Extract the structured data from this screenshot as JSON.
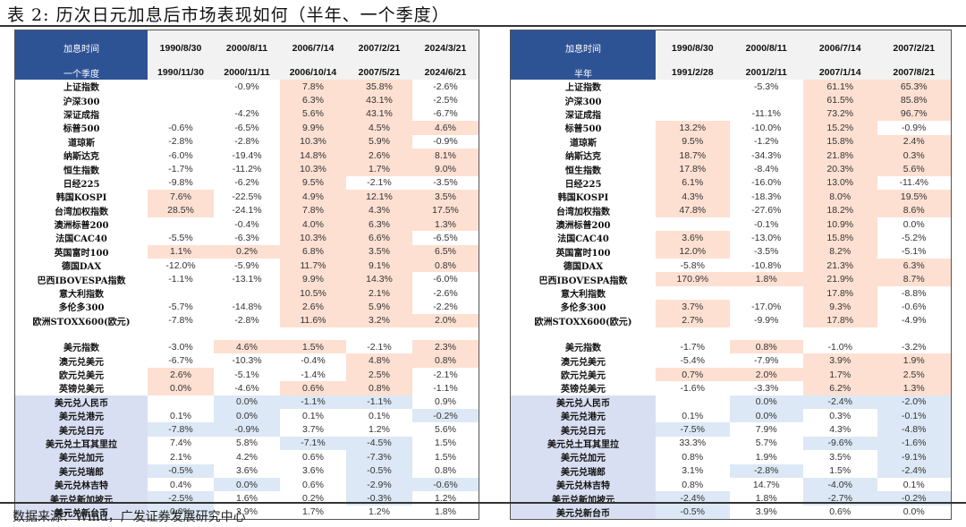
{
  "title": "表 2: 历次日元加息后市场表现如何（半年、一个季度）",
  "source": "数据来源：Wind，广发证券发展研究中心",
  "colors": {
    "header_blue": "#2e5395",
    "positive_shade": "#fde0d2",
    "negative_shade": "#dce8f5",
    "fx_label_shade": "#d9dff2"
  },
  "quarter_table": {
    "header_label_1": "加息时间",
    "header_label_2": "一个季度",
    "start_dates": [
      "1990/8/30",
      "2000/8/11",
      "2006/7/14",
      "2007/2/21",
      "2024/3/21"
    ],
    "end_dates": [
      "1990/11/30",
      "2000/11/11",
      "2006/10/14",
      "2007/5/21",
      "2024/6/21"
    ],
    "equity_rows": [
      {
        "label": "上证指数",
        "values": [
          "",
          "-0.9%",
          "7.8%",
          "35.8%",
          "-2.6%"
        ],
        "shade": [
          "",
          "",
          "o",
          "o",
          ""
        ]
      },
      {
        "label": "沪深300",
        "values": [
          "",
          "",
          "6.3%",
          "43.1%",
          "-2.5%"
        ],
        "shade": [
          "",
          "",
          "o",
          "o",
          ""
        ]
      },
      {
        "label": "深证成指",
        "values": [
          "",
          "-4.2%",
          "5.6%",
          "43.1%",
          "-6.7%"
        ],
        "shade": [
          "",
          "",
          "o",
          "o",
          ""
        ]
      },
      {
        "label": "标普500",
        "values": [
          "-0.6%",
          "-6.5%",
          "9.9%",
          "4.5%",
          "4.6%"
        ],
        "shade": [
          "",
          "",
          "o",
          "o",
          "o"
        ]
      },
      {
        "label": "道琼斯",
        "values": [
          "-2.8%",
          "-2.8%",
          "10.3%",
          "5.9%",
          "-0.9%"
        ],
        "shade": [
          "",
          "",
          "o",
          "o",
          ""
        ]
      },
      {
        "label": "纳斯达克",
        "values": [
          "-6.0%",
          "-19.4%",
          "14.8%",
          "2.6%",
          "8.1%"
        ],
        "shade": [
          "",
          "",
          "o",
          "o",
          "o"
        ]
      },
      {
        "label": "恒生指数",
        "values": [
          "-1.7%",
          "-11.2%",
          "10.3%",
          "1.7%",
          "9.0%"
        ],
        "shade": [
          "",
          "",
          "o",
          "o",
          "o"
        ]
      },
      {
        "label": "日经225",
        "values": [
          "-9.8%",
          "-6.2%",
          "9.5%",
          "-2.1%",
          "-3.5%"
        ],
        "shade": [
          "",
          "",
          "o",
          "",
          ""
        ]
      },
      {
        "label": "韩国KOSPI",
        "values": [
          "7.6%",
          "-22.5%",
          "4.9%",
          "12.1%",
          "3.5%"
        ],
        "shade": [
          "o",
          "",
          "o",
          "o",
          "o"
        ]
      },
      {
        "label": "台湾加权指数",
        "values": [
          "28.5%",
          "-24.1%",
          "7.8%",
          "4.3%",
          "17.5%"
        ],
        "shade": [
          "o",
          "",
          "o",
          "o",
          "o"
        ]
      },
      {
        "label": "澳洲标普200",
        "values": [
          "",
          "-0.4%",
          "4.0%",
          "6.3%",
          "1.3%"
        ],
        "shade": [
          "",
          "",
          "o",
          "o",
          "o"
        ]
      },
      {
        "label": "法国CAC40",
        "values": [
          "-5.5%",
          "-6.3%",
          "10.3%",
          "6.6%",
          "-6.5%"
        ],
        "shade": [
          "",
          "",
          "o",
          "o",
          ""
        ]
      },
      {
        "label": "英国富时100",
        "values": [
          "1.1%",
          "0.2%",
          "6.8%",
          "3.5%",
          "6.5%"
        ],
        "shade": [
          "o",
          "o",
          "o",
          "o",
          "o"
        ]
      },
      {
        "label": "德国DAX",
        "values": [
          "-12.0%",
          "-5.9%",
          "11.7%",
          "9.1%",
          "0.8%"
        ],
        "shade": [
          "",
          "",
          "o",
          "o",
          "o"
        ]
      },
      {
        "label": "巴西IBOVESPA指数",
        "values": [
          "-1.1%",
          "-13.1%",
          "9.9%",
          "14.3%",
          "-6.0%"
        ],
        "shade": [
          "",
          "",
          "o",
          "o",
          ""
        ]
      },
      {
        "label": "意大利指数",
        "values": [
          "",
          "",
          "10.5%",
          "2.1%",
          "-2.6%"
        ],
        "shade": [
          "",
          "",
          "o",
          "o",
          ""
        ]
      },
      {
        "label": "多伦多300",
        "values": [
          "-5.7%",
          "-14.8%",
          "2.6%",
          "5.9%",
          "-2.2%"
        ],
        "shade": [
          "",
          "",
          "o",
          "o",
          ""
        ]
      },
      {
        "label": "欧洲STOXX600(欧元)",
        "values": [
          "-7.8%",
          "-2.8%",
          "11.6%",
          "3.2%",
          "2.0%"
        ],
        "shade": [
          "",
          "",
          "o",
          "o",
          "o"
        ]
      }
    ],
    "dollar_rows": [
      {
        "label": "美元指数",
        "values": [
          "-3.0%",
          "4.6%",
          "1.5%",
          "-2.1%",
          "2.3%"
        ],
        "shade": [
          "",
          "o",
          "o",
          "",
          "o"
        ]
      },
      {
        "label": "澳元兑美元",
        "values": [
          "-6.7%",
          "-10.3%",
          "-0.4%",
          "4.8%",
          "0.8%"
        ],
        "shade": [
          "",
          "",
          "",
          "o",
          "o"
        ]
      },
      {
        "label": "欧元兑美元",
        "values": [
          "2.6%",
          "-5.1%",
          "-1.4%",
          "2.5%",
          "-2.1%"
        ],
        "shade": [
          "o",
          "",
          "",
          "o",
          ""
        ]
      },
      {
        "label": "英镑兑美元",
        "values": [
          "0.0%",
          "-4.6%",
          "0.6%",
          "0.8%",
          "-1.1%"
        ],
        "shade": [
          "o",
          "",
          "o",
          "o",
          ""
        ]
      }
    ],
    "fx_rows": [
      {
        "label": "美元兑人民币",
        "values": [
          "",
          "0.0%",
          "-1.1%",
          "-1.1%",
          "0.9%"
        ],
        "shade": [
          "",
          "b",
          "b",
          "b",
          ""
        ]
      },
      {
        "label": "美元兑港元",
        "values": [
          "0.1%",
          "0.0%",
          "0.1%",
          "0.1%",
          "-0.2%"
        ],
        "shade": [
          "",
          "b",
          "",
          "",
          "b"
        ]
      },
      {
        "label": "美元兑日元",
        "values": [
          "-7.8%",
          "-0.9%",
          "3.7%",
          "1.2%",
          "5.6%"
        ],
        "shade": [
          "b",
          "b",
          "",
          "",
          ""
        ]
      },
      {
        "label": "美元兑土耳其里拉",
        "values": [
          "7.4%",
          "5.8%",
          "-7.1%",
          "-4.5%",
          "1.5%"
        ],
        "shade": [
          "",
          "",
          "b",
          "b",
          ""
        ]
      },
      {
        "label": "美元兑加元",
        "values": [
          "2.1%",
          "4.2%",
          "0.6%",
          "-7.3%",
          "1.5%"
        ],
        "shade": [
          "",
          "",
          "",
          "b",
          ""
        ]
      },
      {
        "label": "美元兑瑞郎",
        "values": [
          "-0.5%",
          "3.6%",
          "3.6%",
          "-0.5%",
          "0.8%"
        ],
        "shade": [
          "b",
          "",
          "",
          "b",
          ""
        ]
      },
      {
        "label": "美元兑林吉特",
        "values": [
          "0.4%",
          "0.0%",
          "0.6%",
          "-2.9%",
          "-0.6%"
        ],
        "shade": [
          "",
          "b",
          "",
          "b",
          "b"
        ]
      },
      {
        "label": "美元兑新加坡元",
        "values": [
          "-2.5%",
          "1.6%",
          "0.2%",
          "-0.3%",
          "1.2%"
        ],
        "shade": [
          "b",
          "",
          "",
          "b",
          ""
        ]
      },
      {
        "label": "美元兑新台币",
        "values": [
          "0.0%",
          "2.9%",
          "1.7%",
          "1.2%",
          "1.8%"
        ],
        "shade": [
          "b",
          "",
          "",
          "",
          ""
        ]
      }
    ]
  },
  "halfyear_table": {
    "header_label_1": "加息时间",
    "header_label_2": "半年",
    "start_dates": [
      "1990/8/30",
      "2000/8/11",
      "2006/7/14",
      "2007/2/21"
    ],
    "end_dates": [
      "1991/2/28",
      "2001/2/11",
      "2007/1/14",
      "2007/8/21"
    ],
    "equity_rows": [
      {
        "label": "上证指数",
        "values": [
          "",
          "-5.3%",
          "61.1%",
          "65.3%"
        ],
        "shade": [
          "",
          "",
          "o",
          "o"
        ]
      },
      {
        "label": "沪深300",
        "values": [
          "",
          "",
          "61.5%",
          "85.8%"
        ],
        "shade": [
          "",
          "",
          "o",
          "o"
        ]
      },
      {
        "label": "深证成指",
        "values": [
          "",
          "-11.1%",
          "73.2%",
          "96.7%"
        ],
        "shade": [
          "",
          "",
          "o",
          "o"
        ]
      },
      {
        "label": "标普500",
        "values": [
          "13.2%",
          "-10.0%",
          "15.2%",
          "-0.9%"
        ],
        "shade": [
          "o",
          "",
          "o",
          ""
        ]
      },
      {
        "label": "道琼斯",
        "values": [
          "9.5%",
          "-1.2%",
          "15.8%",
          "2.4%"
        ],
        "shade": [
          "o",
          "",
          "o",
          "o"
        ]
      },
      {
        "label": "纳斯达克",
        "values": [
          "18.7%",
          "-34.3%",
          "21.8%",
          "0.3%"
        ],
        "shade": [
          "o",
          "",
          "o",
          "o"
        ]
      },
      {
        "label": "恒生指数",
        "values": [
          "17.8%",
          "-8.4%",
          "20.3%",
          "5.6%"
        ],
        "shade": [
          "o",
          "",
          "o",
          "o"
        ]
      },
      {
        "label": "日经225",
        "values": [
          "6.1%",
          "-16.0%",
          "13.0%",
          "-11.4%"
        ],
        "shade": [
          "o",
          "",
          "o",
          ""
        ]
      },
      {
        "label": "韩国KOSPI",
        "values": [
          "4.3%",
          "-18.3%",
          "8.0%",
          "19.5%"
        ],
        "shade": [
          "o",
          "",
          "o",
          "o"
        ]
      },
      {
        "label": "台湾加权指数",
        "values": [
          "47.8%",
          "-27.6%",
          "18.2%",
          "8.6%"
        ],
        "shade": [
          "o",
          "",
          "o",
          "o"
        ]
      },
      {
        "label": "澳洲标普200",
        "values": [
          "",
          "-0.1%",
          "10.9%",
          "0.0%"
        ],
        "shade": [
          "",
          "",
          "o",
          ""
        ]
      },
      {
        "label": "法国CAC40",
        "values": [
          "3.6%",
          "-13.0%",
          "15.8%",
          "-5.2%"
        ],
        "shade": [
          "o",
          "",
          "o",
          ""
        ]
      },
      {
        "label": "英国富时100",
        "values": [
          "12.0%",
          "-3.5%",
          "8.2%",
          "-5.1%"
        ],
        "shade": [
          "o",
          "",
          "o",
          ""
        ]
      },
      {
        "label": "德国DAX",
        "values": [
          "-5.8%",
          "-10.8%",
          "21.3%",
          "6.3%"
        ],
        "shade": [
          "",
          "",
          "o",
          "o"
        ]
      },
      {
        "label": "巴西IBOVESPA指数",
        "values": [
          "170.9%",
          "1.8%",
          "21.9%",
          "8.7%"
        ],
        "shade": [
          "o",
          "o",
          "o",
          "o"
        ]
      },
      {
        "label": "意大利指数",
        "values": [
          "",
          "",
          "17.8%",
          "-8.8%"
        ],
        "shade": [
          "",
          "",
          "o",
          ""
        ]
      },
      {
        "label": "多伦多300",
        "values": [
          "3.7%",
          "-17.0%",
          "9.3%",
          "-0.6%"
        ],
        "shade": [
          "o",
          "",
          "o",
          ""
        ]
      },
      {
        "label": "欧洲STOXX600(欧元)",
        "values": [
          "2.7%",
          "-9.9%",
          "17.8%",
          "-4.9%"
        ],
        "shade": [
          "o",
          "",
          "o",
          ""
        ]
      }
    ],
    "dollar_rows": [
      {
        "label": "美元指数",
        "values": [
          "-1.7%",
          "0.8%",
          "-1.0%",
          "-3.2%"
        ],
        "shade": [
          "",
          "o",
          "",
          ""
        ]
      },
      {
        "label": "澳元兑美元",
        "values": [
          "-5.4%",
          "-7.9%",
          "3.9%",
          "1.9%"
        ],
        "shade": [
          "",
          "",
          "o",
          "o"
        ]
      },
      {
        "label": "欧元兑美元",
        "values": [
          "0.7%",
          "2.0%",
          "1.7%",
          "2.5%"
        ],
        "shade": [
          "o",
          "o",
          "o",
          "o"
        ]
      },
      {
        "label": "英镑兑美元",
        "values": [
          "-1.6%",
          "-3.3%",
          "6.2%",
          "1.3%"
        ],
        "shade": [
          "",
          "",
          "o",
          "o"
        ]
      }
    ],
    "fx_rows": [
      {
        "label": "美元兑人民币",
        "values": [
          "",
          "0.0%",
          "-2.4%",
          "-2.0%"
        ],
        "shade": [
          "",
          "b",
          "b",
          "b"
        ]
      },
      {
        "label": "美元兑港元",
        "values": [
          "0.1%",
          "0.0%",
          "0.3%",
          "-0.1%"
        ],
        "shade": [
          "",
          "b",
          "",
          "b"
        ]
      },
      {
        "label": "美元兑日元",
        "values": [
          "-7.5%",
          "7.9%",
          "4.3%",
          "-4.8%"
        ],
        "shade": [
          "b",
          "",
          "",
          "b"
        ]
      },
      {
        "label": "美元兑土耳其里拉",
        "values": [
          "33.3%",
          "5.7%",
          "-9.6%",
          "-1.6%"
        ],
        "shade": [
          "",
          "",
          "b",
          "b"
        ]
      },
      {
        "label": "美元兑加元",
        "values": [
          "0.8%",
          "1.9%",
          "3.5%",
          "-9.1%"
        ],
        "shade": [
          "",
          "",
          "",
          "b"
        ]
      },
      {
        "label": "美元兑瑞郎",
        "values": [
          "3.1%",
          "-2.8%",
          "1.5%",
          "-2.4%"
        ],
        "shade": [
          "",
          "b",
          "",
          "b"
        ]
      },
      {
        "label": "美元兑林吉特",
        "values": [
          "0.8%",
          "14.7%",
          "-4.0%",
          "0.1%"
        ],
        "shade": [
          "",
          "",
          "b",
          ""
        ]
      },
      {
        "label": "美元兑新加坡元",
        "values": [
          "-2.4%",
          "1.8%",
          "-2.7%",
          "-0.2%"
        ],
        "shade": [
          "b",
          "",
          "b",
          "b"
        ]
      },
      {
        "label": "美元兑新台币",
        "values": [
          "-0.5%",
          "3.9%",
          "0.6%",
          "0.0%"
        ],
        "shade": [
          "b",
          "",
          "",
          ""
        ]
      }
    ]
  }
}
